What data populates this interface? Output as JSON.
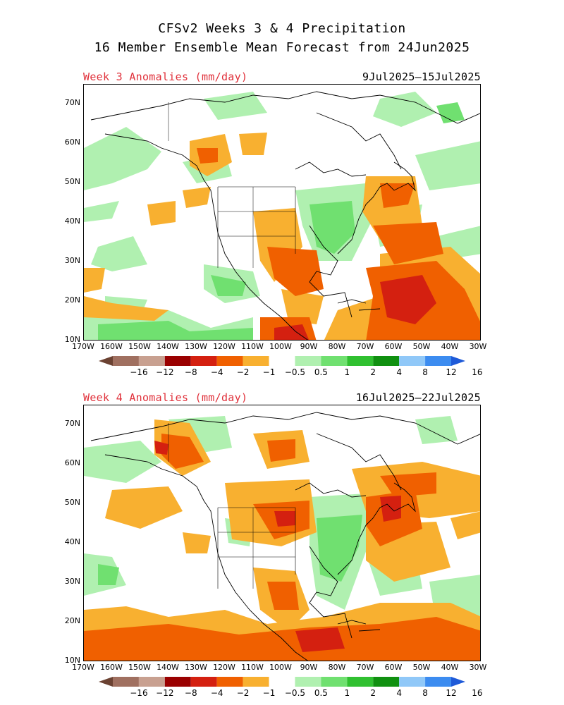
{
  "title_line1": "CFSv2 Weeks 3 & 4 Precipitation",
  "title_line2": "16 Member Ensemble Mean Forecast from 24Jun2025",
  "panels": [
    {
      "label": "Week 3 Anomalies (mm/day)",
      "dates": "9Jul2025–15Jul2025"
    },
    {
      "label": "Week 4 Anomalies (mm/day)",
      "dates": "16Jul2025–22Jul2025"
    }
  ],
  "lat_ticks": [
    "70N",
    "60N",
    "50N",
    "40N",
    "30N",
    "20N",
    "10N"
  ],
  "lon_ticks": [
    "170W",
    "160W",
    "150W",
    "140W",
    "130W",
    "120W",
    "110W",
    "100W",
    "90W",
    "80W",
    "70W",
    "60W",
    "50W",
    "40W",
    "30W"
  ],
  "colorbar": {
    "labels": [
      "-16",
      "-12",
      "-8",
      "-4",
      "-2",
      "-1",
      "-0.5",
      "0.5",
      "1",
      "2",
      "4",
      "8",
      "12",
      "16"
    ],
    "colors": [
      "#6b4232",
      "#a07060",
      "#c8a090",
      "#9a0000",
      "#d42010",
      "#f06000",
      "#f8b030",
      "#ffffff",
      "#b0f0b0",
      "#70e070",
      "#30c030",
      "#109010",
      "#90c8f8",
      "#3c8cf0",
      "#1e5ad8"
    ]
  }
}
